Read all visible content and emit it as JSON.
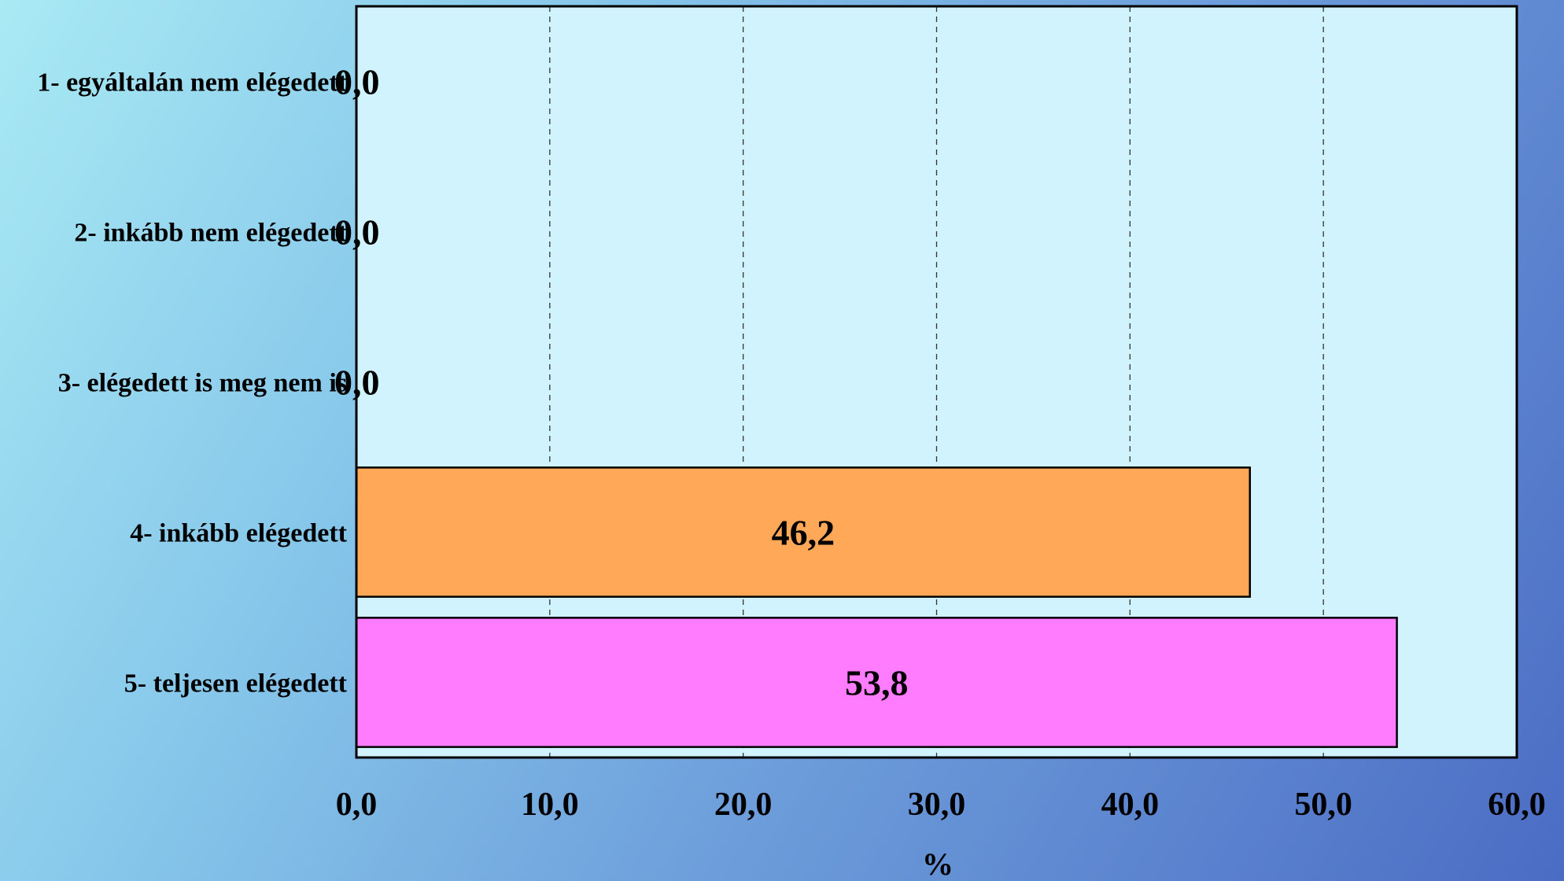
{
  "chart_data": {
    "type": "bar",
    "orientation": "horizontal",
    "categories": [
      "1- egyáltalán nem elégedett",
      "2- inkább nem elégedett",
      "3- elégedett is meg nem is",
      "4- inkább elégedett",
      "5- teljesen elégedett"
    ],
    "values": [
      0.0,
      0.0,
      0.0,
      46.2,
      53.8
    ],
    "value_labels": [
      "0,0",
      "0,0",
      "0,0",
      "46,2",
      "53,8"
    ],
    "bar_colors": [
      "#ffa858",
      "#ffa858",
      "#ffa858",
      "#ffa858",
      "#ff7cff"
    ],
    "xlabel": "%",
    "xlim": [
      0,
      60
    ],
    "xticks": [
      0,
      10,
      20,
      30,
      40,
      50,
      60
    ],
    "xtick_labels": [
      "0,0",
      "10,0",
      "20,0",
      "30,0",
      "40,0",
      "50,0",
      "60,0"
    ],
    "grid": true,
    "plot_background": "#d0f3fd"
  }
}
